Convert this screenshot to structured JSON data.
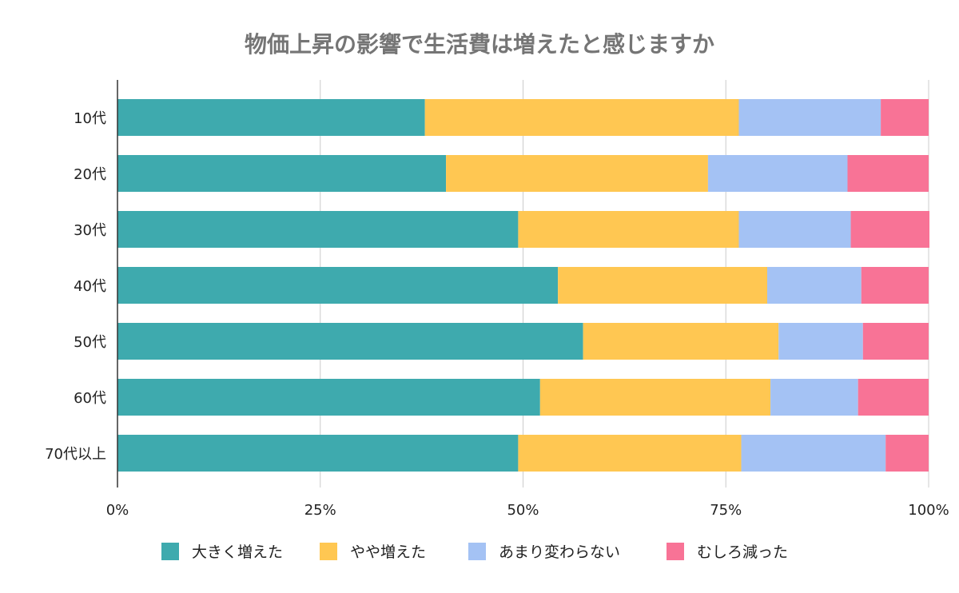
{
  "chart_data": {
    "type": "bar",
    "orientation": "horizontal",
    "stacked": "percent",
    "title": "物価上昇の影響で生活費は増えたと感じますか",
    "categories": [
      "10代",
      "20代",
      "30代",
      "40代",
      "50代",
      "60代",
      "70代以上"
    ],
    "series": [
      {
        "name": "大きく増えた",
        "color": "#3eaaae",
        "values": [
          37.9,
          40.5,
          49.4,
          54.3,
          57.4,
          52.1,
          49.4
        ]
      },
      {
        "name": "やや増えた",
        "color": "#ffc752",
        "values": [
          38.7,
          32.3,
          27.2,
          25.8,
          24.1,
          28.4,
          27.5
        ]
      },
      {
        "name": "あまり変わらない",
        "color": "#a4c2f4",
        "values": [
          17.5,
          17.2,
          13.8,
          11.6,
          10.4,
          10.8,
          17.8
        ]
      },
      {
        "name": "むしろ減った",
        "color": "#f87396",
        "values": [
          5.9,
          10.0,
          9.7,
          8.3,
          8.1,
          8.7,
          5.3
        ]
      }
    ],
    "xticks": [
      "0%",
      "25%",
      "50%",
      "75%",
      "100%"
    ],
    "xlim": [
      0,
      100
    ],
    "grid": true,
    "legend": "bottom"
  }
}
